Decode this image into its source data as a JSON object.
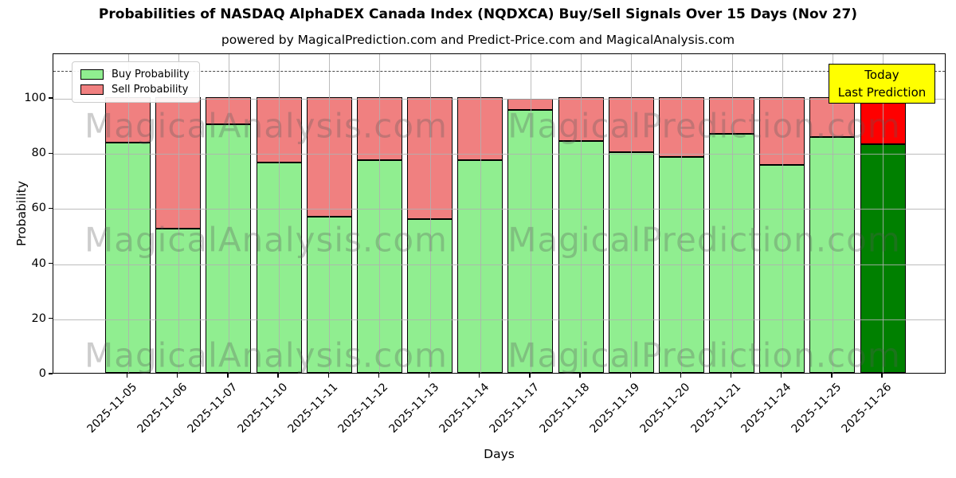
{
  "title": "Probabilities of NASDAQ AlphaDEX Canada Index (NQDXCA) Buy/Sell Signals Over 15 Days (Nov 27)",
  "subtitle": "powered by MagicalPrediction.com and Predict-Price.com and MagicalAnalysis.com",
  "axes": {
    "ylabel": "Probability",
    "xlabel": "Days",
    "yticks": [
      0,
      20,
      40,
      60,
      80,
      100
    ],
    "ylim": [
      0,
      116
    ],
    "threshold_line_y": 110,
    "grid": true
  },
  "legend": {
    "position": "upper-left",
    "items": [
      {
        "label": "Buy Probability",
        "color": "#90EE90"
      },
      {
        "label": "Sell Probability",
        "color": "#F08080"
      }
    ]
  },
  "today_callout": {
    "line1": "Today",
    "line2": "Last Prediction",
    "bg": "#FFFF00"
  },
  "watermarks": {
    "left_text": "MagicalAnalysis.com",
    "right_text": "MagicalPrediction.com"
  },
  "colors": {
    "buy": "#90EE90",
    "sell": "#F08080",
    "today_buy": "#008000",
    "today_sell": "#FF0000",
    "bar_edge": "#000000",
    "grid": "#b0b0b0",
    "today_box_bg": "#FFFF00"
  },
  "chart_data": {
    "type": "bar",
    "stacked": true,
    "title": "Probabilities of NASDAQ AlphaDEX Canada Index (NQDXCA) Buy/Sell Signals Over 15 Days (Nov 27)",
    "xlabel": "Days",
    "ylabel": "Probability",
    "ylim": [
      0,
      116
    ],
    "categories": [
      "2025-11-05",
      "2025-11-06",
      "2025-11-07",
      "2025-11-10",
      "2025-11-11",
      "2025-11-12",
      "2025-11-13",
      "2025-11-14",
      "2025-11-17",
      "2025-11-18",
      "2025-11-19",
      "2025-11-20",
      "2025-11-21",
      "2025-11-24",
      "2025-11-25",
      "2025-11-26"
    ],
    "series": [
      {
        "name": "Buy Probability",
        "values": [
          83.4,
          52.2,
          90.3,
          76.4,
          56.6,
          77.2,
          55.9,
          77.2,
          95.4,
          84.0,
          80.0,
          78.3,
          86.7,
          75.4,
          85.5,
          83.0
        ]
      },
      {
        "name": "Sell Probability",
        "values": [
          16.6,
          47.8,
          9.7,
          23.6,
          43.4,
          22.8,
          44.1,
          22.8,
          3.9,
          16.0,
          20.0,
          21.7,
          13.3,
          24.6,
          14.5,
          17.0
        ]
      }
    ],
    "today_index": 15,
    "legend_position": "upper left",
    "grid": true
  }
}
